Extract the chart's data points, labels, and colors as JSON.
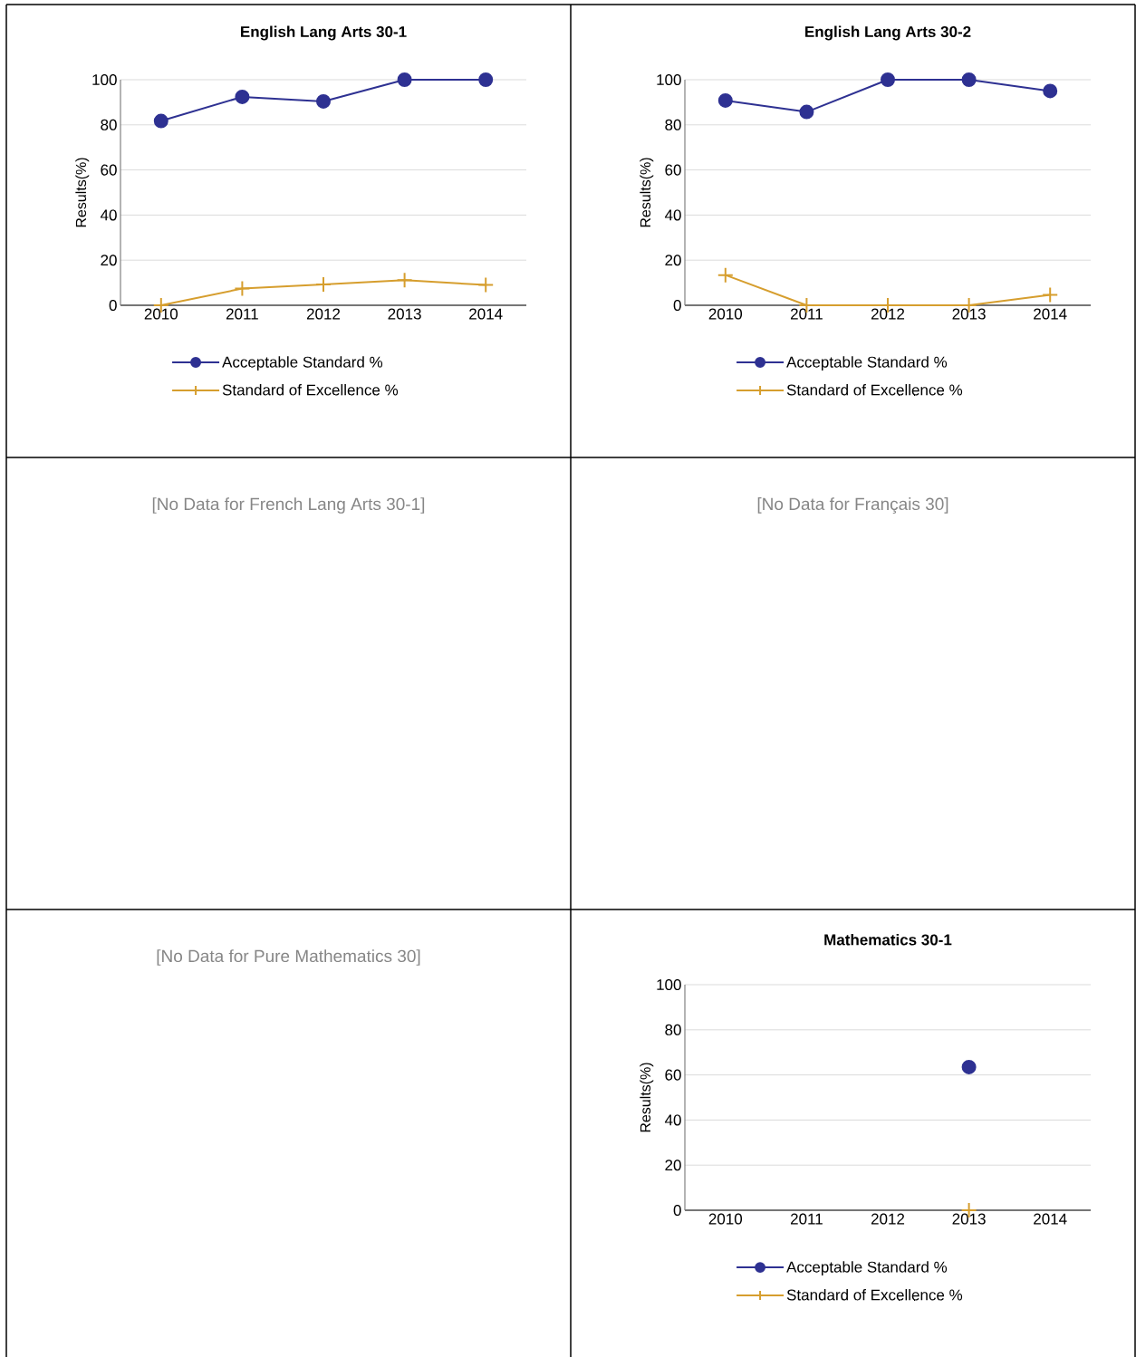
{
  "chart_data": [
    {
      "type": "line",
      "title": "English Lang Arts 30-1",
      "ylabel": "Results(%)",
      "categories": [
        "2010",
        "2011",
        "2012",
        "2013",
        "2014"
      ],
      "ylim": [
        0,
        100
      ],
      "yticks": [
        0,
        20,
        40,
        60,
        80,
        100
      ],
      "grid": "y",
      "legend": "bottom",
      "series": [
        {
          "name": "Acceptable Standard %",
          "color": "#2e3192",
          "marker": "circle",
          "values": [
            81.7,
            92.4,
            90.4,
            100,
            100
          ]
        },
        {
          "name": "Standard of Excellence %",
          "color": "#d69e2e",
          "marker": "cross",
          "values": [
            0,
            7.4,
            9.2,
            11.1,
            9.0
          ]
        }
      ]
    },
    {
      "type": "line",
      "title": "English Lang Arts 30-2",
      "ylabel": "Results(%)",
      "categories": [
        "2010",
        "2011",
        "2012",
        "2013",
        "2014"
      ],
      "ylim": [
        0,
        100
      ],
      "yticks": [
        0,
        20,
        40,
        60,
        80,
        100
      ],
      "grid": "y",
      "legend": "bottom",
      "series": [
        {
          "name": "Acceptable Standard %",
          "color": "#2e3192",
          "marker": "circle",
          "values": [
            90.8,
            85.7,
            100,
            100,
            95.0
          ]
        },
        {
          "name": "Standard of Excellence %",
          "color": "#d69e2e",
          "marker": "cross",
          "values": [
            13.4,
            0,
            0,
            0,
            4.6
          ]
        }
      ]
    },
    {
      "type": "other",
      "title": "[No Data for French Lang Arts 30-1]"
    },
    {
      "type": "other",
      "title": "[No Data for Français 30]"
    },
    {
      "type": "other",
      "title": "[No Data for Pure Mathematics 30]"
    },
    {
      "type": "line",
      "title": "Mathematics 30-1",
      "ylabel": "Results(%)",
      "categories": [
        "2010",
        "2011",
        "2012",
        "2013",
        "2014"
      ],
      "ylim": [
        0,
        100
      ],
      "yticks": [
        0,
        20,
        40,
        60,
        80,
        100
      ],
      "grid": "y",
      "legend": "bottom",
      "series": [
        {
          "name": "Acceptable Standard %",
          "color": "#2e3192",
          "marker": "circle",
          "values": [
            null,
            null,
            null,
            63.5,
            null
          ]
        },
        {
          "name": "Standard of Excellence %",
          "color": "#d69e2e",
          "marker": "cross",
          "values": [
            null,
            null,
            null,
            0,
            null
          ]
        }
      ]
    }
  ]
}
